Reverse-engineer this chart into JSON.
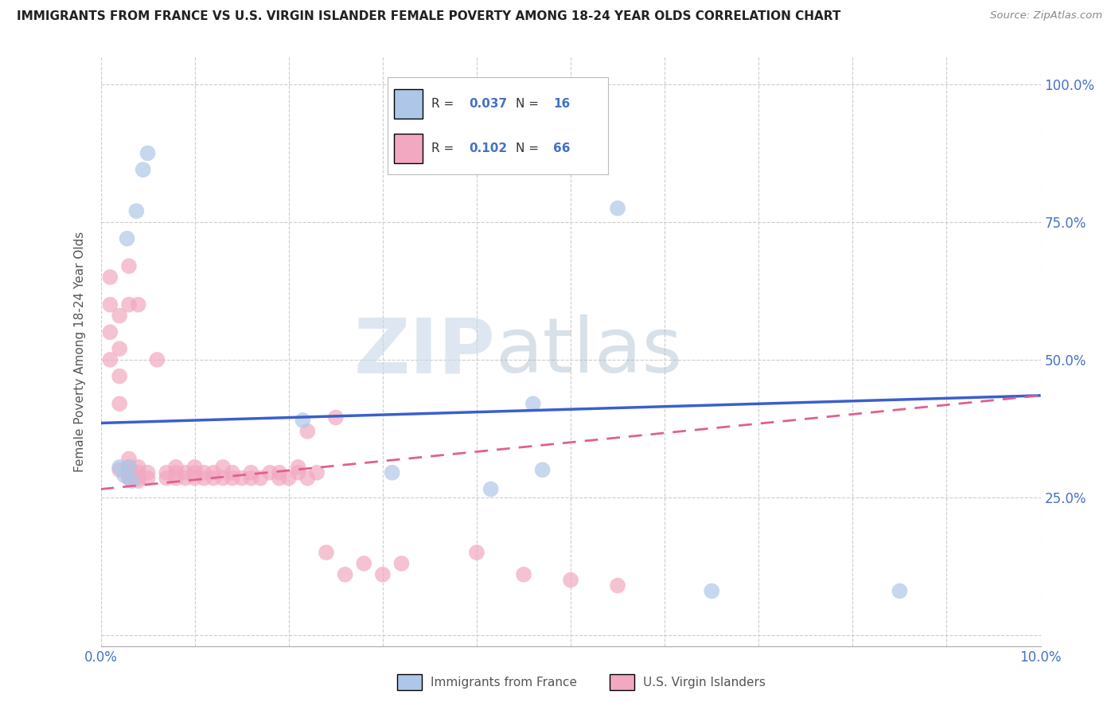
{
  "title": "IMMIGRANTS FROM FRANCE VS U.S. VIRGIN ISLANDER FEMALE POVERTY AMONG 18-24 YEAR OLDS CORRELATION CHART",
  "source": "Source: ZipAtlas.com",
  "ylabel": "Female Poverty Among 18-24 Year Olds",
  "xlim": [
    0.0,
    0.1
  ],
  "ylim": [
    -0.02,
    1.05
  ],
  "ytick_positions": [
    0.0,
    0.25,
    0.5,
    0.75,
    1.0
  ],
  "ytick_labels_right": [
    "",
    "25.0%",
    "50.0%",
    "75.0%",
    "100.0%"
  ],
  "ytick_labels_left": [
    "",
    "",
    "",
    "",
    ""
  ],
  "blue_R": 0.037,
  "blue_N": 16,
  "pink_R": 0.102,
  "pink_N": 66,
  "blue_color": "#aec6e8",
  "pink_color": "#f2a8c0",
  "blue_line_color": "#3a5fcd",
  "pink_line_color": "#e06090",
  "legend_label_blue": "Immigrants from France",
  "legend_label_pink": "U.S. Virgin Islanders",
  "watermark_zip": "ZIP",
  "watermark_atlas": "atlas",
  "background_color": "#ffffff",
  "blue_scatter_x": [
    0.003,
    0.0033,
    0.0045,
    0.005,
    0.0028,
    0.0038,
    0.002,
    0.0025,
    0.0215,
    0.031,
    0.0415,
    0.047,
    0.055,
    0.046,
    0.065,
    0.085
  ],
  "blue_scatter_y": [
    0.305,
    0.28,
    0.845,
    0.875,
    0.72,
    0.77,
    0.305,
    0.29,
    0.39,
    0.295,
    0.265,
    0.3,
    0.775,
    0.42,
    0.08,
    0.08
  ],
  "pink_scatter_x": [
    0.001,
    0.001,
    0.001,
    0.001,
    0.002,
    0.002,
    0.002,
    0.002,
    0.002,
    0.003,
    0.003,
    0.003,
    0.003,
    0.003,
    0.003,
    0.003,
    0.003,
    0.004,
    0.004,
    0.004,
    0.004,
    0.004,
    0.005,
    0.005,
    0.006,
    0.007,
    0.007,
    0.008,
    0.008,
    0.008,
    0.009,
    0.009,
    0.01,
    0.01,
    0.01,
    0.011,
    0.011,
    0.012,
    0.012,
    0.013,
    0.013,
    0.014,
    0.014,
    0.015,
    0.016,
    0.016,
    0.017,
    0.018,
    0.019,
    0.019,
    0.02,
    0.021,
    0.021,
    0.022,
    0.022,
    0.023,
    0.024,
    0.025,
    0.026,
    0.028,
    0.03,
    0.032,
    0.04,
    0.045,
    0.05,
    0.055
  ],
  "pink_scatter_y": [
    0.65,
    0.6,
    0.55,
    0.5,
    0.58,
    0.52,
    0.47,
    0.42,
    0.3,
    0.295,
    0.285,
    0.305,
    0.32,
    0.295,
    0.285,
    0.6,
    0.67,
    0.28,
    0.295,
    0.305,
    0.285,
    0.6,
    0.285,
    0.295,
    0.5,
    0.285,
    0.295,
    0.285,
    0.295,
    0.305,
    0.285,
    0.295,
    0.285,
    0.295,
    0.305,
    0.285,
    0.295,
    0.285,
    0.295,
    0.285,
    0.305,
    0.285,
    0.295,
    0.285,
    0.285,
    0.295,
    0.285,
    0.295,
    0.285,
    0.295,
    0.285,
    0.295,
    0.305,
    0.37,
    0.285,
    0.295,
    0.15,
    0.395,
    0.11,
    0.13,
    0.11,
    0.13,
    0.15,
    0.11,
    0.1,
    0.09
  ],
  "blue_line_x0": 0.0,
  "blue_line_x1": 0.1,
  "blue_line_y0": 0.385,
  "blue_line_y1": 0.435,
  "pink_line_x0": 0.0,
  "pink_line_x1": 0.1,
  "pink_line_y0": 0.265,
  "pink_line_y1": 0.435
}
